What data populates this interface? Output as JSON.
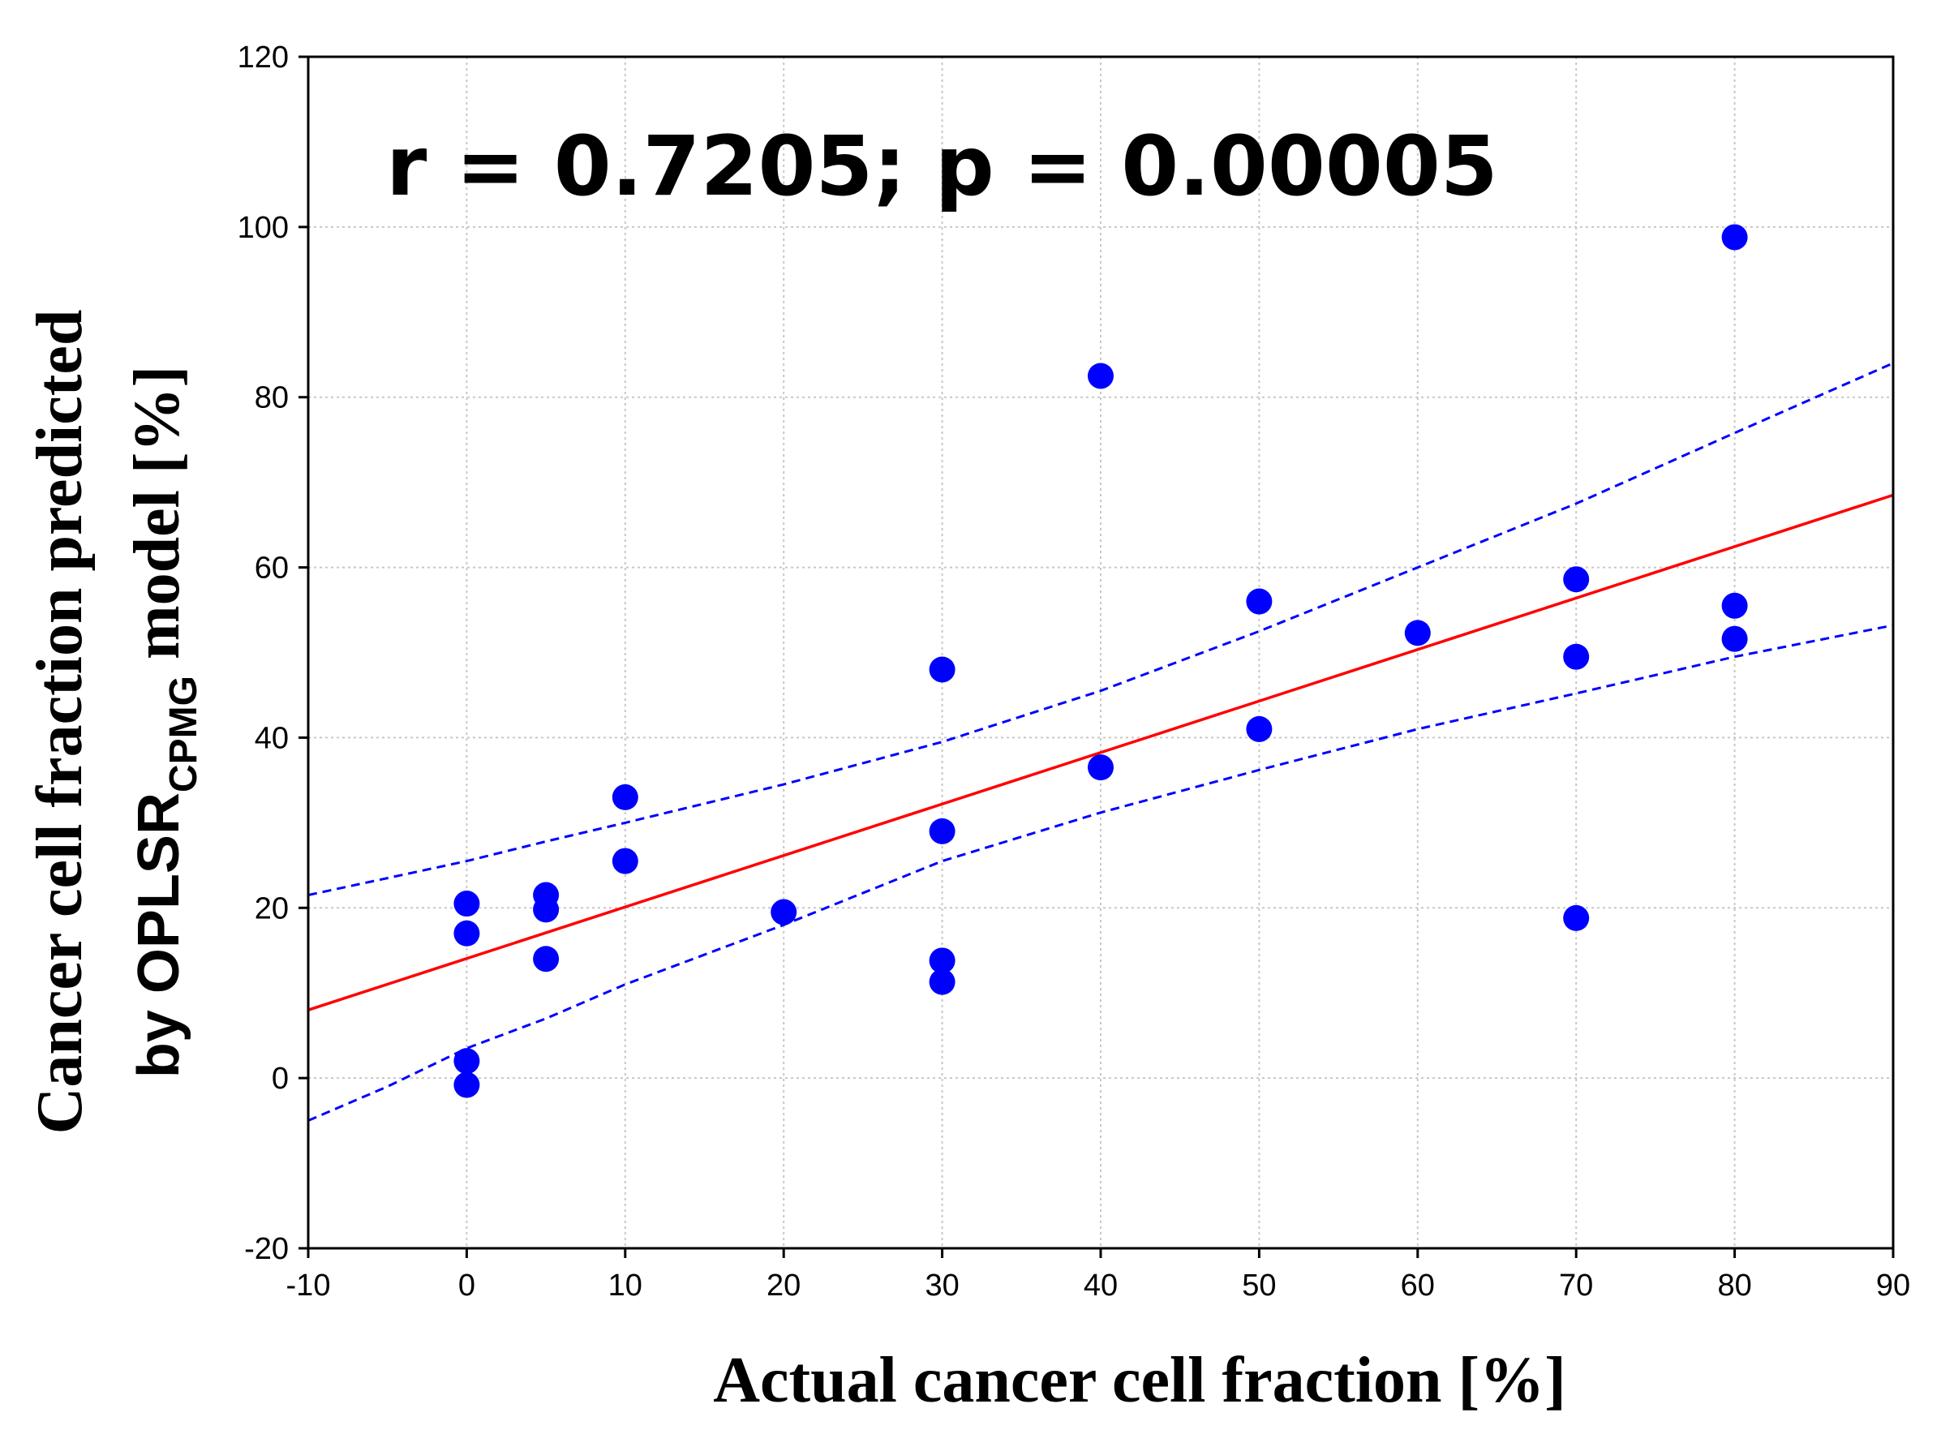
{
  "chart_data": {
    "type": "scatter",
    "title": "",
    "annotation": "r = 0.7205; p = 0.00005",
    "xlabel": "Actual cancer cell fraction [%]",
    "ylabel_line1": "Cancer cell fraction predicted",
    "ylabel_line2_prefix": "by OPLSR",
    "ylabel_line2_subscript": "CPMG",
    "ylabel_line2_suffix": " model [%]",
    "xlim": [
      -10,
      90
    ],
    "ylim": [
      -20,
      120
    ],
    "xticks": [
      -10,
      0,
      10,
      20,
      30,
      40,
      50,
      60,
      70,
      80,
      90
    ],
    "yticks": [
      -20,
      0,
      20,
      40,
      60,
      80,
      100,
      120
    ],
    "grid": true,
    "colors": {
      "points": "#0000ff",
      "regression": "#ff0000",
      "confidence": "#0000ff",
      "grid": "#c8c8c8",
      "axis": "#000000"
    },
    "points": [
      {
        "x": 0,
        "y": 20.5
      },
      {
        "x": 0,
        "y": 17
      },
      {
        "x": 0,
        "y": 2
      },
      {
        "x": 0,
        "y": -0.8
      },
      {
        "x": 5,
        "y": 21.5
      },
      {
        "x": 5,
        "y": 19.8
      },
      {
        "x": 5,
        "y": 14
      },
      {
        "x": 10,
        "y": 33
      },
      {
        "x": 10,
        "y": 25.5
      },
      {
        "x": 20,
        "y": 19.5
      },
      {
        "x": 30,
        "y": 48
      },
      {
        "x": 30,
        "y": 29
      },
      {
        "x": 30,
        "y": 13.8
      },
      {
        "x": 30,
        "y": 11.3
      },
      {
        "x": 40,
        "y": 82.5
      },
      {
        "x": 40,
        "y": 36.5
      },
      {
        "x": 50,
        "y": 56
      },
      {
        "x": 50,
        "y": 41
      },
      {
        "x": 60,
        "y": 52.3
      },
      {
        "x": 70,
        "y": 58.6
      },
      {
        "x": 70,
        "y": 49.5
      },
      {
        "x": 70,
        "y": 18.8
      },
      {
        "x": 80,
        "y": 98.8
      },
      {
        "x": 80,
        "y": 55.5
      },
      {
        "x": 80,
        "y": 51.6
      }
    ],
    "regression_line": {
      "x": [
        -10,
        90
      ],
      "y": [
        8.0,
        68.5
      ]
    },
    "upper_confidence": {
      "x": [
        -10,
        -5,
        0,
        5,
        10,
        20,
        30,
        40,
        50,
        60,
        70,
        80,
        90
      ],
      "y": [
        21.5,
        23.5,
        25.5,
        27.8,
        30,
        34.5,
        39.5,
        45.5,
        52.5,
        60,
        67.5,
        75.8,
        84
      ]
    },
    "lower_confidence": {
      "x": [
        -10,
        -5,
        0,
        5,
        10,
        20,
        30,
        40,
        50,
        60,
        70,
        80,
        90
      ],
      "y": [
        -5,
        -1,
        3.5,
        7,
        11,
        18,
        25.5,
        31.2,
        36.2,
        41,
        45.2,
        49.5,
        53.2
      ]
    }
  }
}
